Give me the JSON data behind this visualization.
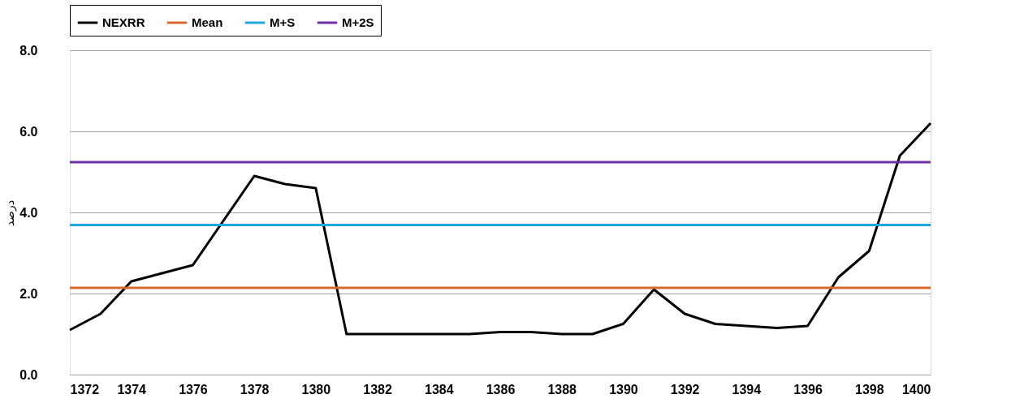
{
  "chart_data": {
    "type": "line",
    "ylabel": "درصد",
    "x": [
      1372,
      1373,
      1374,
      1375,
      1376,
      1377,
      1378,
      1379,
      1380,
      1381,
      1382,
      1383,
      1384,
      1385,
      1386,
      1387,
      1388,
      1389,
      1390,
      1391,
      1392,
      1393,
      1394,
      1395,
      1396,
      1397,
      1398,
      1399,
      1400
    ],
    "series": [
      {
        "name": "NEXRR",
        "color": "#000000",
        "values": [
          1.1,
          1.5,
          2.3,
          2.5,
          2.7,
          3.8,
          4.9,
          4.7,
          4.6,
          1.0,
          1.0,
          1.0,
          1.0,
          1.0,
          1.05,
          1.05,
          1.0,
          1.0,
          1.25,
          2.1,
          1.5,
          1.25,
          1.2,
          1.15,
          1.2,
          2.4,
          3.05,
          5.4,
          6.2
        ]
      },
      {
        "name": "Mean",
        "color": "#d9692b",
        "values": [
          2.14,
          2.14,
          2.14,
          2.14,
          2.14,
          2.14,
          2.14,
          2.14,
          2.14,
          2.14,
          2.14,
          2.14,
          2.14,
          2.14,
          2.14,
          2.14,
          2.14,
          2.14,
          2.14,
          2.14,
          2.14,
          2.14,
          2.14,
          2.14,
          2.14,
          2.14,
          2.14,
          2.14,
          2.14
        ]
      },
      {
        "name": "M+S",
        "color": "#1fa8e0",
        "values": [
          3.69,
          3.69,
          3.69,
          3.69,
          3.69,
          3.69,
          3.69,
          3.69,
          3.69,
          3.69,
          3.69,
          3.69,
          3.69,
          3.69,
          3.69,
          3.69,
          3.69,
          3.69,
          3.69,
          3.69,
          3.69,
          3.69,
          3.69,
          3.69,
          3.69,
          3.69,
          3.69,
          3.69,
          3.69
        ]
      },
      {
        "name": "M+2S",
        "color": "#7030a0",
        "values": [
          5.24,
          5.24,
          5.24,
          5.24,
          5.24,
          5.24,
          5.24,
          5.24,
          5.24,
          5.24,
          5.24,
          5.24,
          5.24,
          5.24,
          5.24,
          5.24,
          5.24,
          5.24,
          5.24,
          5.24,
          5.24,
          5.24,
          5.24,
          5.24,
          5.24,
          5.24,
          5.24,
          5.24,
          5.24
        ]
      }
    ],
    "xlim": [
      1372,
      1400
    ],
    "xticks": [
      1372,
      1374,
      1376,
      1378,
      1380,
      1382,
      1384,
      1386,
      1388,
      1390,
      1392,
      1394,
      1396,
      1398,
      1400
    ],
    "ylim": [
      0,
      8
    ],
    "yticks": [
      {
        "value": 0,
        "label": "0.0"
      },
      {
        "value": 2,
        "label": "2.0"
      },
      {
        "value": 4,
        "label": "4.0"
      },
      {
        "value": 6,
        "label": "6.0"
      },
      {
        "value": 8,
        "label": "8.0"
      }
    ],
    "grid": "y",
    "legend": "top",
    "line_style": "solid",
    "marker": "none"
  }
}
